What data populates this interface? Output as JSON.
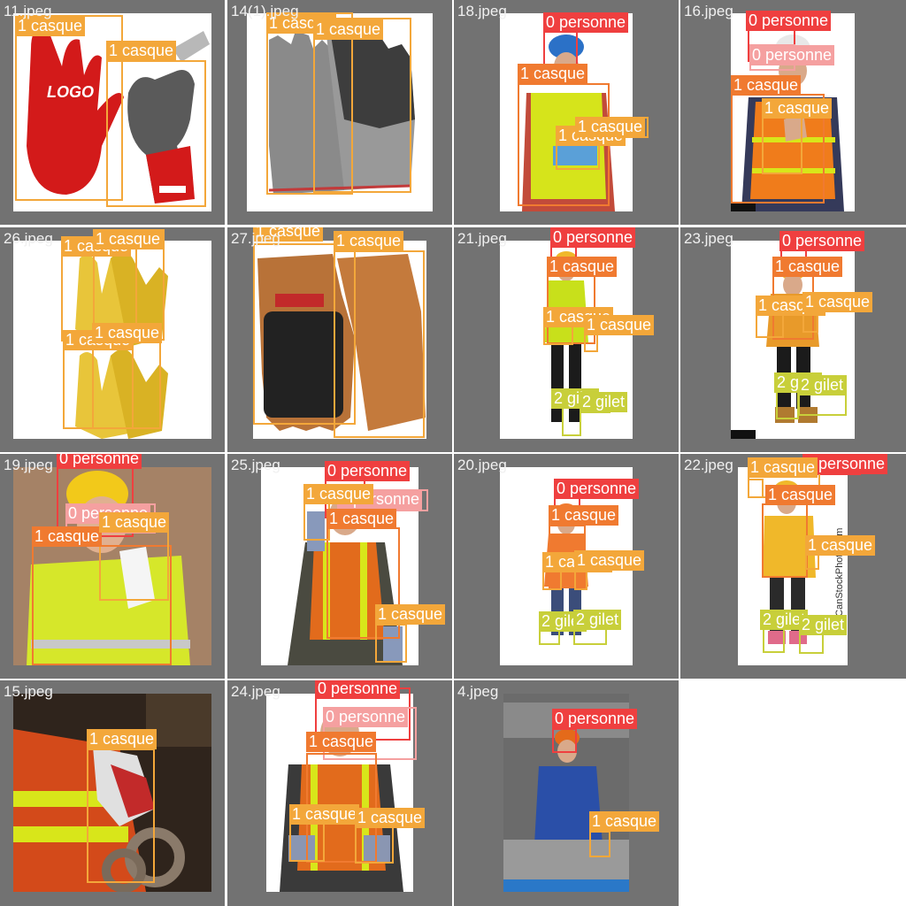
{
  "labels": {
    "casque": "1 casque",
    "personne": "0 personne",
    "gilet": "2 gilet"
  },
  "colors": {
    "tile_background": "#727272",
    "casque_box": "#f3a73a",
    "casque_box_dark": "#f07a30",
    "personne_box": "#ef3f3f",
    "personne_box_light": "#f5a0a0",
    "gilet_box": "#c8cf3a"
  },
  "tiles": [
    {
      "name": "11.jpeg",
      "content": "red and grey work gloves with LOGO print"
    },
    {
      "name": "14(1).jpeg",
      "content": "grey knitted gloves with black grip"
    },
    {
      "name": "18.jpeg",
      "content": "worker in blue helmet and yellow vest"
    },
    {
      "name": "16.jpeg",
      "content": "worker in orange vest thumbs up"
    },
    {
      "name": "26.jpeg",
      "content": "yellow leather gloves"
    },
    {
      "name": "27.jpeg",
      "content": "brown leather impact gloves"
    },
    {
      "name": "21.jpeg",
      "content": "standing worker in yellow vest"
    },
    {
      "name": "23.jpeg",
      "content": "standing worker with helmet and boots"
    },
    {
      "name": "19.jpeg",
      "content": "woman in yellow helmet and high-vis vest"
    },
    {
      "name": "25.jpeg",
      "content": "man in orange safety vest"
    },
    {
      "name": "20.jpeg",
      "content": "worker in orange vest full body"
    },
    {
      "name": "22.jpeg",
      "content": "worker in yellow vest full body"
    },
    {
      "name": "15.jpeg",
      "content": "gloved hand holding chain"
    },
    {
      "name": "24.jpeg",
      "content": "man in orange vest with gloves"
    },
    {
      "name": "4.jpeg",
      "content": "worker in blue overalls in factory"
    }
  ]
}
